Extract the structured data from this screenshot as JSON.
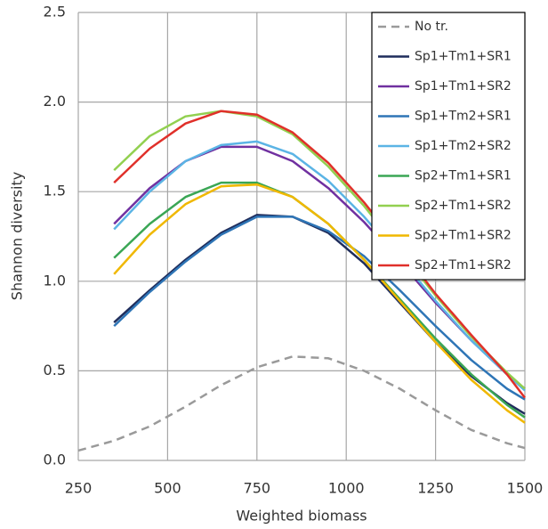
{
  "chart_data": {
    "type": "line",
    "xlabel": "Weighted biomass",
    "ylabel": "Shannon diversity",
    "x": [
      250,
      350,
      450,
      550,
      650,
      750,
      850,
      950,
      1050,
      1150,
      1250,
      1350,
      1450,
      1500
    ],
    "series": [
      {
        "name": "No tr.",
        "color": "#9a9a9a",
        "style": "dashed",
        "values": [
          0.055,
          0.11,
          0.19,
          0.3,
          0.42,
          0.52,
          0.58,
          0.57,
          0.5,
          0.4,
          0.28,
          0.17,
          0.096,
          0.069
        ]
      },
      {
        "name": "Sp1+Tm1+SR1",
        "color": "#1f2d5c",
        "style": "solid",
        "values": [
          null,
          0.77,
          0.95,
          1.12,
          1.27,
          1.37,
          1.36,
          1.27,
          1.1,
          0.88,
          0.66,
          0.47,
          0.32,
          0.26
        ]
      },
      {
        "name": "Sp1+Tm1+SR2",
        "color": "#7030a0",
        "style": "solid",
        "values": [
          null,
          1.32,
          1.52,
          1.67,
          1.75,
          1.75,
          1.67,
          1.52,
          1.33,
          1.11,
          0.88,
          0.67,
          0.48,
          0.4
        ]
      },
      {
        "name": "Sp1+Tm2+SR1",
        "color": "#2e75b6",
        "style": "solid",
        "values": [
          null,
          0.75,
          0.94,
          1.11,
          1.26,
          1.36,
          1.36,
          1.28,
          1.14,
          0.95,
          0.75,
          0.56,
          0.4,
          0.34
        ]
      },
      {
        "name": "Sp1+Tm2+SR2",
        "color": "#5bb4e5",
        "style": "solid",
        "values": [
          null,
          1.29,
          1.5,
          1.67,
          1.76,
          1.78,
          1.71,
          1.56,
          1.36,
          1.13,
          0.89,
          0.67,
          0.48,
          0.39
        ]
      },
      {
        "name": "Sp2+Tm1+SR1",
        "color": "#3aa655",
        "style": "solid",
        "values": [
          null,
          1.13,
          1.32,
          1.47,
          1.55,
          1.55,
          1.47,
          1.32,
          1.12,
          0.9,
          0.68,
          0.48,
          0.31,
          0.24
        ]
      },
      {
        "name": "Sp2+Tm1+SR2",
        "color": "#92d050",
        "style": "solid",
        "values": [
          null,
          1.62,
          1.81,
          1.92,
          1.95,
          1.92,
          1.82,
          1.64,
          1.42,
          1.17,
          0.92,
          0.69,
          0.49,
          0.4
        ]
      },
      {
        "name": "Sp2+Tm1+SR2",
        "color": "#f0b800",
        "style": "solid",
        "values": [
          null,
          1.04,
          1.26,
          1.43,
          1.53,
          1.54,
          1.47,
          1.32,
          1.12,
          0.89,
          0.66,
          0.45,
          0.28,
          0.21
        ]
      },
      {
        "name": "Sp2+Tm1+SR2",
        "color": "#e0302a",
        "style": "solid",
        "values": [
          null,
          1.55,
          1.74,
          1.88,
          1.95,
          1.93,
          1.83,
          1.66,
          1.44,
          1.19,
          0.93,
          0.7,
          0.48,
          0.35
        ]
      }
    ],
    "xlim": [
      250,
      1500
    ],
    "xticks": [
      250,
      500,
      750,
      1000,
      1250,
      1500
    ],
    "ylim": [
      0,
      2.5
    ],
    "yticks": [
      {
        "value": 0,
        "label": "0.0"
      },
      {
        "value": 0.5,
        "label": "0.5"
      },
      {
        "value": 1,
        "label": "1.0"
      },
      {
        "value": 1.5,
        "label": "1.5"
      },
      {
        "value": 2,
        "label": "2.0"
      },
      {
        "value": 2.5,
        "label": "2.5"
      }
    ],
    "grid": true,
    "legend": "upper right"
  }
}
